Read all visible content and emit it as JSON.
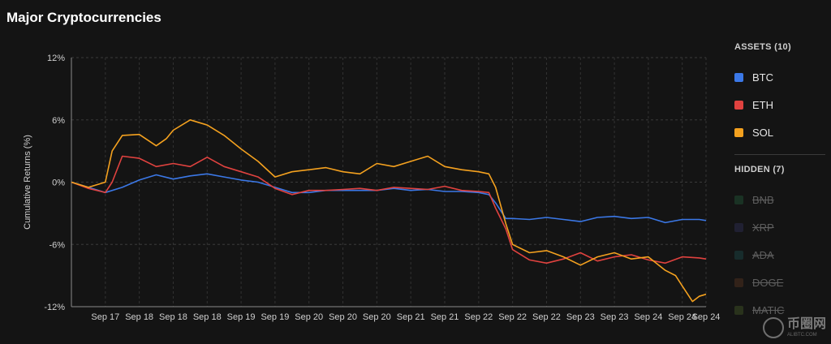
{
  "title": "Major Cryptocurrencies",
  "legend": {
    "assets_heading": "ASSETS (10)",
    "hidden_heading": "HIDDEN (7)",
    "assets": [
      {
        "label": "BTC",
        "color": "#3b78e7"
      },
      {
        "label": "ETH",
        "color": "#e0423f"
      },
      {
        "label": "SOL",
        "color": "#f4a11f"
      }
    ],
    "hidden": [
      {
        "label": "BNB",
        "color": "#1f4a32"
      },
      {
        "label": "XRP",
        "color": "#2a2a4a"
      },
      {
        "label": "ADA",
        "color": "#1a4040"
      },
      {
        "label": "DOGE",
        "color": "#4a2e1e"
      },
      {
        "label": "MATIC",
        "color": "#3a4a22"
      }
    ]
  },
  "watermark": {
    "main": "币圈网",
    "sub": "ALIBTC.COM"
  },
  "chart_data": {
    "type": "line",
    "title": "Major Cryptocurrencies",
    "ylabel": "Cumulative Returns (%)",
    "xlabel": "",
    "ylim": [
      -12,
      12
    ],
    "yticks": [
      12,
      6,
      0,
      -6,
      -12
    ],
    "ytick_labels": [
      "12%",
      "6%",
      "0%",
      "-6%",
      "-12%"
    ],
    "xlim": [
      0,
      187
    ],
    "xticks": [
      10,
      20,
      30,
      40,
      50,
      60,
      70,
      80,
      90,
      100,
      110,
      120,
      130,
      140,
      150,
      160,
      170,
      180,
      187
    ],
    "xtick_labels": [
      "Sep 17",
      "Sep 18",
      "Sep 18",
      "Sep 18",
      "Sep 19",
      "Sep 19",
      "Sep 20",
      "Sep 20",
      "Sep 20",
      "Sep 21",
      "Sep 21",
      "Sep 22",
      "Sep 22",
      "Sep 22",
      "Sep 23",
      "Sep 23",
      "Sep 24",
      "Sep 24",
      "Sep 24"
    ],
    "grid": true,
    "legend_position": "right",
    "series": [
      {
        "name": "BTC",
        "color": "#3b78e7",
        "x": [
          0,
          5,
          10,
          15,
          20,
          25,
          30,
          35,
          40,
          45,
          50,
          55,
          60,
          65,
          70,
          75,
          80,
          85,
          90,
          95,
          100,
          105,
          110,
          115,
          120,
          123,
          125,
          128,
          130,
          135,
          140,
          145,
          150,
          155,
          160,
          165,
          170,
          175,
          180,
          185,
          187
        ],
        "y": [
          0,
          -0.5,
          -1,
          -0.5,
          0.2,
          0.7,
          0.3,
          0.6,
          0.8,
          0.5,
          0.2,
          0,
          -0.5,
          -1,
          -1,
          -0.8,
          -0.8,
          -0.8,
          -0.8,
          -0.6,
          -0.8,
          -0.7,
          -0.9,
          -0.9,
          -1,
          -1.2,
          -2,
          -3.5,
          -3.5,
          -3.6,
          -3.4,
          -3.6,
          -3.8,
          -3.4,
          -3.3,
          -3.5,
          -3.4,
          -3.9,
          -3.6,
          -3.6,
          -3.7
        ]
      },
      {
        "name": "ETH",
        "color": "#e0423f",
        "x": [
          0,
          5,
          10,
          12,
          15,
          20,
          25,
          30,
          35,
          40,
          45,
          50,
          55,
          60,
          65,
          70,
          75,
          80,
          85,
          90,
          95,
          100,
          105,
          110,
          115,
          120,
          123,
          125,
          128,
          130,
          135,
          140,
          145,
          150,
          155,
          160,
          165,
          170,
          175,
          180,
          185,
          187
        ],
        "y": [
          0,
          -0.6,
          -1,
          0,
          2.5,
          2.3,
          1.5,
          1.8,
          1.5,
          2.4,
          1.5,
          1,
          0.5,
          -0.6,
          -1.2,
          -0.8,
          -0.8,
          -0.7,
          -0.6,
          -0.8,
          -0.5,
          -0.6,
          -0.7,
          -0.4,
          -0.8,
          -0.9,
          -1,
          -2.5,
          -4.5,
          -6.5,
          -7.5,
          -7.8,
          -7.4,
          -6.8,
          -7.6,
          -7.2,
          -7,
          -7.5,
          -7.8,
          -7.2,
          -7.3,
          -7.4
        ]
      },
      {
        "name": "SOL",
        "color": "#f4a11f",
        "x": [
          0,
          5,
          10,
          12,
          15,
          20,
          25,
          28,
          30,
          35,
          40,
          45,
          50,
          55,
          60,
          65,
          70,
          75,
          80,
          85,
          90,
          95,
          100,
          105,
          110,
          115,
          120,
          123,
          125,
          128,
          130,
          135,
          140,
          145,
          150,
          155,
          160,
          165,
          170,
          175,
          178,
          180,
          183,
          185,
          187
        ],
        "y": [
          0,
          -0.5,
          0,
          3,
          4.5,
          4.6,
          3.5,
          4.2,
          5,
          6,
          5.5,
          4.5,
          3.2,
          2,
          0.5,
          1,
          1.2,
          1.4,
          1,
          0.8,
          1.8,
          1.5,
          2,
          2.5,
          1.5,
          1.2,
          1,
          0.8,
          -0.5,
          -4,
          -6,
          -6.8,
          -6.6,
          -7.2,
          -8,
          -7.2,
          -6.8,
          -7.4,
          -7.2,
          -8.5,
          -9,
          -10,
          -11.5,
          -11,
          -10.8
        ]
      }
    ]
  }
}
